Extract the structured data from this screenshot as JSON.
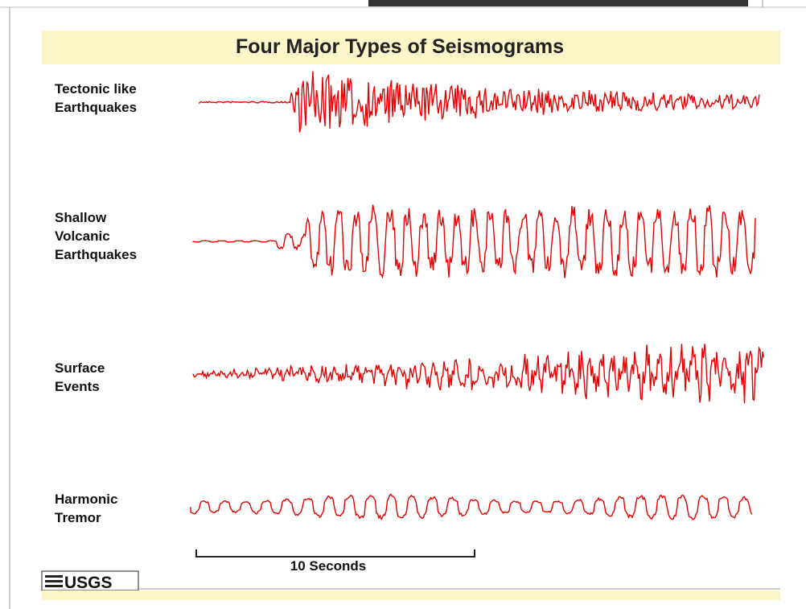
{
  "title": "Four Major Types of Seismograms",
  "traces": [
    {
      "label_lines": [
        "Tectonic like",
        "Earthquakes"
      ]
    },
    {
      "label_lines": [
        "Shallow",
        "Volcanic",
        "Earthquakes"
      ]
    },
    {
      "label_lines": [
        "Surface",
        "Events"
      ]
    },
    {
      "label_lines": [
        "Harmonic",
        "Tremor"
      ]
    }
  ],
  "scale_label": "10 Seconds",
  "logo": "USGS"
}
